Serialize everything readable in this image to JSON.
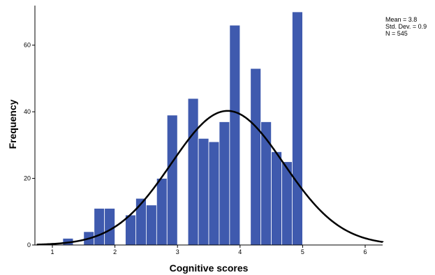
{
  "chart_data": {
    "type": "bar",
    "subtype": "histogram-with-normal-curve",
    "xlabel": "Cognitive scores",
    "ylabel": "Frequency",
    "xlim": [
      0.75,
      6.3
    ],
    "ylim": [
      0,
      72
    ],
    "x_ticks": [
      1,
      2,
      3,
      4,
      5,
      6
    ],
    "y_ticks": [
      0,
      20,
      40,
      60
    ],
    "bin_width": 0.1667,
    "bins": [
      {
        "x0": 1.1667,
        "x1": 1.3333,
        "value": 2
      },
      {
        "x0": 1.5,
        "x1": 1.6667,
        "value": 4
      },
      {
        "x0": 1.6667,
        "x1": 1.8333,
        "value": 11
      },
      {
        "x0": 1.8333,
        "x1": 2.0,
        "value": 11
      },
      {
        "x0": 2.1667,
        "x1": 2.3333,
        "value": 9
      },
      {
        "x0": 2.3333,
        "x1": 2.5,
        "value": 14
      },
      {
        "x0": 2.5,
        "x1": 2.6667,
        "value": 12
      },
      {
        "x0": 2.6667,
        "x1": 2.8333,
        "value": 20
      },
      {
        "x0": 2.8333,
        "x1": 3.0,
        "value": 39
      },
      {
        "x0": 3.1667,
        "x1": 3.3333,
        "value": 44
      },
      {
        "x0": 3.3333,
        "x1": 3.5,
        "value": 32
      },
      {
        "x0": 3.5,
        "x1": 3.6667,
        "value": 31
      },
      {
        "x0": 3.6667,
        "x1": 3.8333,
        "value": 37
      },
      {
        "x0": 3.8333,
        "x1": 4.0,
        "value": 66
      },
      {
        "x0": 4.1667,
        "x1": 4.3333,
        "value": 53
      },
      {
        "x0": 4.3333,
        "x1": 4.5,
        "value": 37
      },
      {
        "x0": 4.5,
        "x1": 4.6667,
        "value": 28
      },
      {
        "x0": 4.6667,
        "x1": 4.8333,
        "value": 25
      },
      {
        "x0": 4.8333,
        "x1": 5.0,
        "value": 70
      }
    ],
    "normal_curve": {
      "mean": 3.8,
      "sd": 0.9,
      "n": 545
    },
    "stats_text": [
      "Mean = 3.8",
      "Std. Dev. = 0.9",
      "N = 545"
    ],
    "legend_position": "top-right",
    "grid": false,
    "colors": {
      "bar_fill": "#3F5AAE",
      "bar_edge": "#FFFFFF",
      "curve": "#000000",
      "axis": "#000000"
    }
  }
}
